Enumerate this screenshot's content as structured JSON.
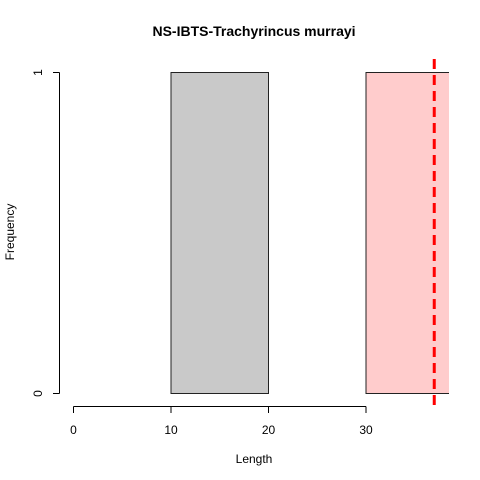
{
  "chart_data": {
    "type": "bar",
    "title": "NS-IBTS-Trachyrincus murrayi",
    "xlabel": "Length",
    "ylabel": "Frequency",
    "xlim": [
      0,
      38
    ],
    "ylim": [
      0,
      1
    ],
    "x_ticks": [
      "0",
      "10",
      "20",
      "30"
    ],
    "y_ticks": [
      "0",
      "1"
    ],
    "bins": [
      {
        "from": 10,
        "to": 20,
        "count": 1,
        "fill": "#c9c9c9"
      },
      {
        "from": 30,
        "to": 40,
        "count": 1,
        "fill": "#ffcccc"
      }
    ],
    "reference_line": {
      "x": 37,
      "color": "#ff0000",
      "style": "dashed"
    }
  }
}
